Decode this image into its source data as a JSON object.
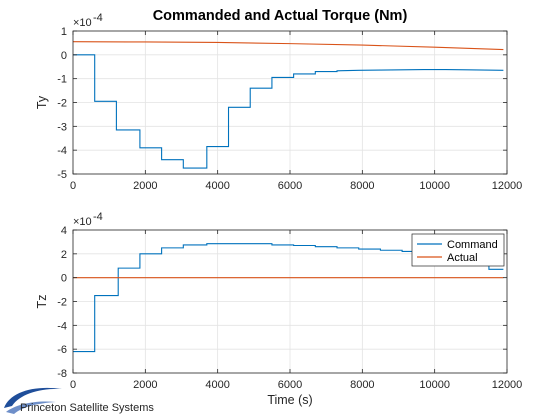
{
  "title": "Commanded and Actual Torque (Nm)",
  "footer": {
    "brand": "Princeton Satellite Systems"
  },
  "colors": {
    "command": "#0072BD",
    "actual": "#D95319",
    "grid": "#e3e3e3",
    "axis": "#262626"
  },
  "chart_data": [
    {
      "type": "line",
      "ylabel": "Ty",
      "xlabel": "",
      "exponent_label": "×10",
      "exponent_value": "-4",
      "xlim": [
        0,
        12000
      ],
      "ylim": [
        -5,
        1
      ],
      "grid": true,
      "xticks": [
        "0",
        "2000",
        "4000",
        "6000",
        "8000",
        "10000",
        "12000"
      ],
      "xtick_values": [
        0,
        2000,
        4000,
        6000,
        8000,
        10000,
        12000
      ],
      "yticks": [
        "1",
        "0",
        "-1",
        "-2",
        "-3",
        "-4",
        "-5"
      ],
      "ytick_values": [
        1,
        0,
        -1,
        -2,
        -3,
        -4,
        -5
      ],
      "series": [
        {
          "name": "Command",
          "color": "#0072BD",
          "x": [
            0,
            600,
            600,
            1200,
            1200,
            1850,
            1850,
            2450,
            2450,
            3050,
            3050,
            3700,
            3700,
            4300,
            4300,
            4900,
            4900,
            5500,
            5500,
            6100,
            6100,
            6700,
            6700,
            7300,
            7300,
            7900,
            8500,
            9100,
            9700,
            10300,
            10900,
            11900
          ],
          "y": [
            0,
            0,
            -1.95,
            -1.95,
            -3.15,
            -3.15,
            -3.9,
            -3.9,
            -4.4,
            -4.4,
            -4.75,
            -4.75,
            -3.85,
            -3.85,
            -2.2,
            -2.2,
            -1.4,
            -1.4,
            -0.95,
            -0.95,
            -0.8,
            -0.8,
            -0.7,
            -0.7,
            -0.67,
            -0.65,
            -0.64,
            -0.63,
            -0.62,
            -0.62,
            -0.63,
            -0.65
          ]
        },
        {
          "name": "Actual",
          "color": "#D95319",
          "x": [
            0,
            2000,
            4000,
            6000,
            8000,
            10000,
            11900
          ],
          "y": [
            0.55,
            0.54,
            0.52,
            0.47,
            0.41,
            0.32,
            0.22
          ]
        }
      ]
    },
    {
      "type": "line",
      "ylabel": "Tz",
      "xlabel": "Time (s)",
      "exponent_label": "×10",
      "exponent_value": "-4",
      "xlim": [
        0,
        12000
      ],
      "ylim": [
        -8,
        4
      ],
      "grid": true,
      "xticks": [
        "0",
        "2000",
        "4000",
        "6000",
        "8000",
        "10000",
        "12000"
      ],
      "xtick_values": [
        0,
        2000,
        4000,
        6000,
        8000,
        10000,
        12000
      ],
      "yticks": [
        "4",
        "2",
        "0",
        "-2",
        "-4",
        "-6",
        "-8"
      ],
      "ytick_values": [
        4,
        2,
        0,
        -2,
        -4,
        -6,
        -8
      ],
      "legend": {
        "placement": "top-right",
        "entries": [
          "Command",
          "Actual"
        ]
      },
      "series": [
        {
          "name": "Command",
          "color": "#0072BD",
          "x": [
            0,
            600,
            600,
            1250,
            1250,
            1850,
            1850,
            2450,
            2450,
            3050,
            3050,
            3700,
            3700,
            4900,
            4900,
            5500,
            5500,
            6100,
            6100,
            6700,
            6700,
            7300,
            7300,
            7900,
            7900,
            8500,
            8500,
            9100,
            9100,
            9700,
            9700,
            10300,
            10300,
            10900,
            10900,
            11500,
            11500,
            11900
          ],
          "y": [
            -6.2,
            -6.2,
            -1.5,
            -1.5,
            0.8,
            0.8,
            2.0,
            2.0,
            2.5,
            2.5,
            2.75,
            2.75,
            2.85,
            2.85,
            2.85,
            2.85,
            2.75,
            2.75,
            2.7,
            2.7,
            2.6,
            2.6,
            2.5,
            2.5,
            2.4,
            2.4,
            2.3,
            2.3,
            2.2,
            2.2,
            2.05,
            2.05,
            1.9,
            1.9,
            1.5,
            1.5,
            0.7,
            0.7
          ]
        },
        {
          "name": "Actual",
          "color": "#D95319",
          "x": [
            0,
            11900
          ],
          "y": [
            0,
            0
          ]
        }
      ]
    }
  ]
}
